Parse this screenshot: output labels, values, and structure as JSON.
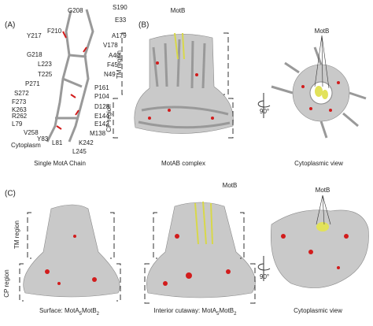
{
  "panels": [
    {
      "label": "(A)"
    },
    {
      "label": "(B)"
    },
    {
      "label": "(C)"
    }
  ],
  "residues": [
    "G208",
    "S190",
    "E33",
    "F210",
    "Y217",
    "A179",
    "V178",
    "G218",
    "A40",
    "L223",
    "F45",
    "T225",
    "N49",
    "P271",
    "P161",
    "S272",
    "P104",
    "F273",
    "D128",
    "K263",
    "R262",
    "E144",
    "L79",
    "E142",
    "V258",
    "M138",
    "Y83",
    "L81",
    "K242",
    "L245",
    "Cytoplasm"
  ],
  "region_labels": {
    "tm": "TM region",
    "cp": "CP region"
  },
  "motb": "MotB",
  "rotation": "90°",
  "captions": [
    {
      "text": [
        "Single MotA Chain"
      ]
    },
    {
      "text": [
        "MotAB complex"
      ]
    },
    {
      "text": [
        "Cytoplasmic view"
      ]
    },
    {
      "text": [
        "Surface: MotA",
        "5",
        "MotB",
        "2"
      ]
    },
    {
      "text": [
        "Interior cutaway: MotA",
        "5",
        "MotB",
        "2"
      ]
    },
    {
      "text": [
        "Cytoplasmic view"
      ]
    }
  ]
}
